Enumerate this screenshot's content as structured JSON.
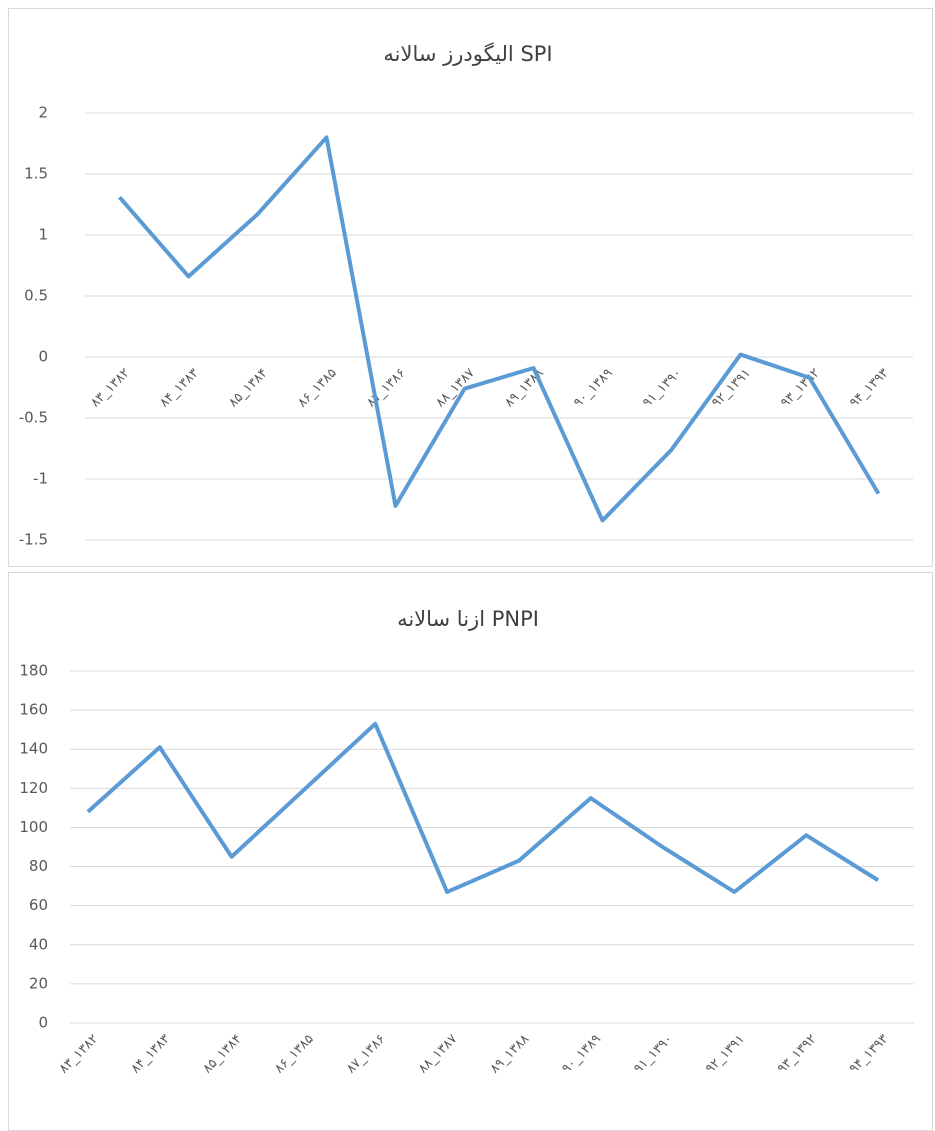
{
  "chart_data": [
    {
      "type": "line",
      "title": "الیگودرز سالانه SPI",
      "categories": [
        "۸۳_۱۳۸۲",
        "۸۴_۱۳۸۳",
        "۸۵_۱۳۸۴",
        "۸۶_۱۳۸۵",
        "۸۷_۱۳۸۶",
        "۸۸_۱۳۸۷",
        "۸۹_۱۳۸۸",
        "۹۰_۱۳۸۹",
        "۹۱_۱۳۹۰",
        "۹۲_۱۳۹۱",
        "۹۳_۱۳۹۲",
        "۹۴_۱۳۹۳"
      ],
      "values": [
        1.31,
        0.66,
        1.17,
        1.8,
        -1.22,
        -0.26,
        -0.09,
        -1.34,
        -0.76,
        0.02,
        -0.17,
        -1.12
      ],
      "color": "#5b9bd5",
      "ylim": [
        -1.5,
        2
      ],
      "yticks": [
        -1.5,
        -1,
        -0.5,
        0,
        0.5,
        1,
        1.5,
        2
      ],
      "grid": true
    },
    {
      "type": "line",
      "title": "ازنا سالانه PNPI",
      "categories": [
        "۸۳_۱۳۸۲",
        "۸۴_۱۳۸۳",
        "۸۵_۱۳۸۴",
        "۸۶_۱۳۸۵",
        "۸۷_۱۳۸۶",
        "۸۸_۱۳۸۷",
        "۸۹_۱۳۸۸",
        "۹۰_۱۳۸۹",
        "۹۱_۱۳۹۰",
        "۹۲_۱۳۹۱",
        "۹۳_۱۳۹۲",
        "۹۴_۱۳۹۳"
      ],
      "values": [
        108,
        141,
        85,
        119,
        153,
        67,
        83,
        115,
        90,
        67,
        96,
        73
      ],
      "color": "#5b9bd5",
      "ylim": [
        0,
        180
      ],
      "yticks": [
        0,
        20,
        40,
        60,
        80,
        100,
        120,
        140,
        160,
        180
      ],
      "grid": true
    }
  ]
}
